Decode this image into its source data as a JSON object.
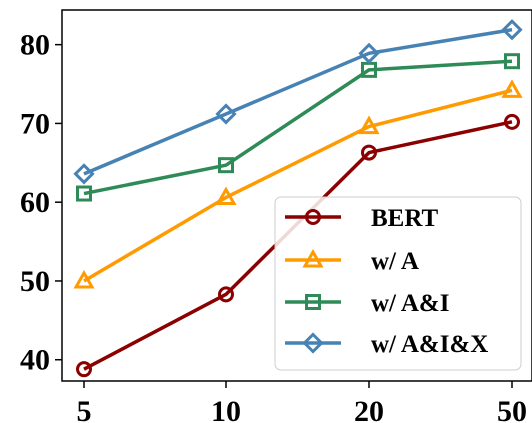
{
  "chart_data": {
    "type": "line",
    "x": [
      5,
      10,
      20,
      50
    ],
    "xtick_labels": [
      "5",
      "10",
      "20",
      "50"
    ],
    "ytick_labels": [
      "40",
      "50",
      "60",
      "70",
      "80"
    ],
    "yticks": [
      40,
      50,
      60,
      70,
      80
    ],
    "ylim": [
      37.3,
      84.4
    ],
    "xscale": "categorical",
    "grid": false,
    "legend_position": "lower-right",
    "series": [
      {
        "name": "BERT",
        "values": [
          38.8,
          48.3,
          66.3,
          70.2
        ],
        "color": "#8b0000",
        "marker": "circle"
      },
      {
        "name": "w/ A",
        "values": [
          50.0,
          60.6,
          69.6,
          74.2
        ],
        "color": "#ff9a00",
        "marker": "triangle"
      },
      {
        "name": "w/ A&I",
        "values": [
          61.1,
          64.7,
          76.8,
          77.9
        ],
        "color": "#2e8b57",
        "marker": "square"
      },
      {
        "name": "w/ A&I&X",
        "values": [
          63.6,
          71.2,
          78.9,
          81.9
        ],
        "color": "#4682b4",
        "marker": "diamond"
      }
    ]
  }
}
